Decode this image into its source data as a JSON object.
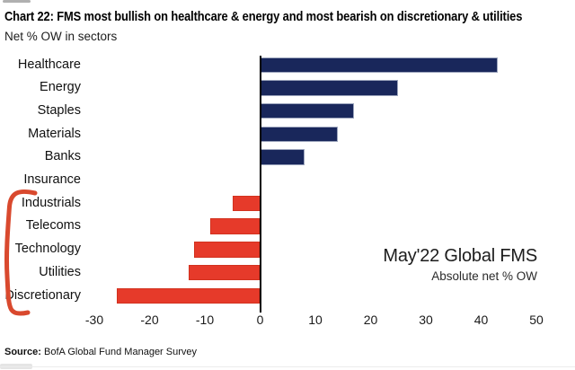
{
  "header": {
    "title": "Chart 22: FMS most bullish on healthcare & energy and most bearish on discretionary & utilities",
    "subtitle": "Net % OW in sectors"
  },
  "annotation": {
    "line1": "May'22 Global FMS",
    "line2": "Absolute net % OW"
  },
  "source": {
    "label": "Source:",
    "text": "BofA Global Fund Manager Survey"
  },
  "colors": {
    "positive_bar": "#19275B",
    "negative_bar": "#E63A2A",
    "bracket": "#D9492E",
    "axis": "#000000"
  },
  "chart_data": {
    "type": "bar",
    "orientation": "horizontal",
    "title": "Chart 22: FMS most bullish on healthcare & energy and most bearish on discretionary & utilities",
    "subtitle": "Net % OW in sectors",
    "xlabel": "",
    "ylabel": "",
    "categories": [
      "Healthcare",
      "Energy",
      "Staples",
      "Materials",
      "Banks",
      "Insurance",
      "Industrials",
      "Telecoms",
      "Technology",
      "Utilities",
      "Discretionary"
    ],
    "values": [
      43,
      25,
      17,
      14,
      8,
      0,
      -5,
      -9,
      -12,
      -13,
      -26
    ],
    "xlim": [
      -30,
      50
    ],
    "xticks": [
      -30,
      -20,
      -10,
      0,
      10,
      20,
      30,
      40,
      50
    ],
    "grid": false,
    "legend": false,
    "annotation_text": [
      "May'22 Global FMS",
      "Absolute net % OW"
    ],
    "bracketed_categories": [
      "Industrials",
      "Telecoms",
      "Technology",
      "Utilities",
      "Discretionary"
    ]
  }
}
